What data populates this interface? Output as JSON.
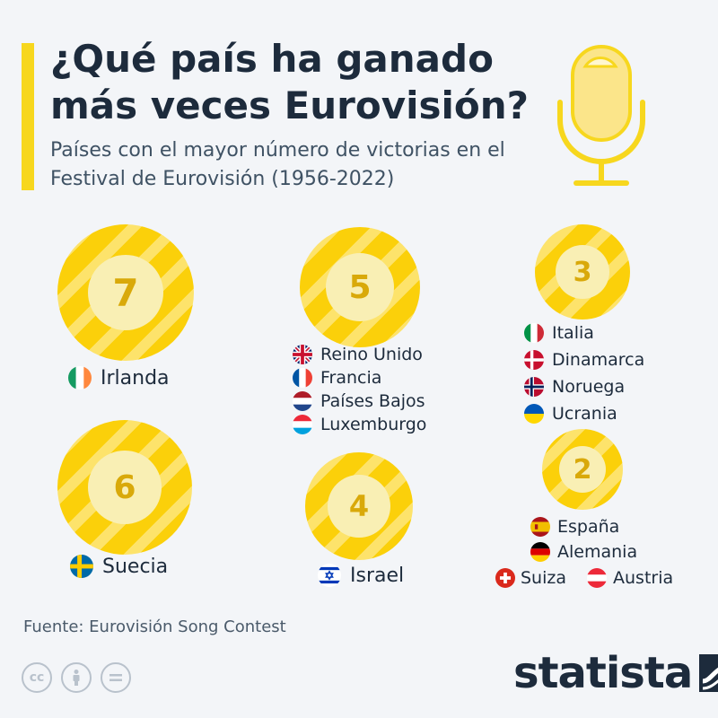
{
  "title": "¿Qué país ha ganado más veces Eurovisión?",
  "subtitle": "Países con el mayor número de victorias en el Festival de Eurovisión (1956-2022)",
  "source": "Fuente: Eurovisión Song Contest",
  "brand": "statista",
  "license_icons": [
    "cc",
    "by",
    "nd"
  ],
  "colors": {
    "medal": "#fbd00a",
    "medal_stripe": "#fde36b",
    "medal_inner": "#f9efb4",
    "number": "#d9a90a",
    "accent": "#f7d71e"
  },
  "chart_data": {
    "type": "bar",
    "title": "¿Qué país ha ganado más veces Eurovisión?",
    "subtitle": "Países con el mayor número de victorias en el Festival de Eurovisión (1956-2022)",
    "xlabel": "",
    "ylabel": "",
    "groups": [
      {
        "wins": "7",
        "countries": [
          "Irlanda"
        ]
      },
      {
        "wins": "6",
        "countries": [
          "Suecia"
        ]
      },
      {
        "wins": "5",
        "countries": [
          "Reino Unido",
          "Francia",
          "Países Bajos",
          "Luxemburgo"
        ]
      },
      {
        "wins": "4",
        "countries": [
          "Israel"
        ]
      },
      {
        "wins": "3",
        "countries": [
          "Italia",
          "Dinamarca",
          "Noruega",
          "Ucrania"
        ]
      },
      {
        "wins": "2",
        "countries": [
          "España",
          "Alemania",
          "Suiza",
          "Austria"
        ]
      }
    ]
  }
}
